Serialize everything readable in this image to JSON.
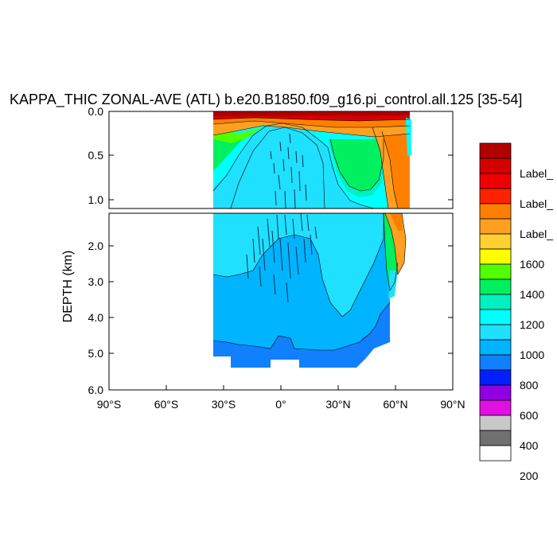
{
  "chart_data": {
    "type": "heatmap",
    "title": "KAPPA_THIC ZONAL-AVE (ATL) b.e20.B1850.f09_g16.pi_control.all.125 [35-54]",
    "ylabel": "DEPTH (km)",
    "xlim": [
      -90,
      90
    ],
    "ylim": [
      0,
      6
    ],
    "x_tick_labels": [
      "90°S",
      "60°S",
      "30°S",
      "0°",
      "30°N",
      "60°N",
      "90°N"
    ],
    "y_tick_labels_upper": [
      "0.0",
      "0.5",
      "1.0"
    ],
    "y_tick_labels_lower": [
      "2.0",
      "3.0",
      "4.0",
      "5.0",
      "6.0"
    ],
    "panels": [
      {
        "name": "upper",
        "depth_range": [
          0,
          1.1
        ]
      },
      {
        "name": "lower",
        "depth_range": [
          1.1,
          6.0
        ]
      }
    ],
    "colorbar": {
      "labels_top_down": [
        "Label_",
        "Label_",
        "Label_",
        "1600",
        "1400",
        "1200",
        "1000",
        "800",
        "600",
        "400",
        "200"
      ],
      "colors_top_down": [
        "#b00000",
        "#d40000",
        "#ee0000",
        "#ff2200",
        "#ff8000",
        "#ffa020",
        "#ffd030",
        "#ffff00",
        "#50ff00",
        "#00f060",
        "#00f0c0",
        "#00ffff",
        "#20e0ff",
        "#00b4ff",
        "#1080ff",
        "#0020ff",
        "#9000e0",
        "#e010e0",
        "#c8c8c8",
        "#707070",
        "#ffffff"
      ]
    },
    "data_extent": {
      "lon_min": -35,
      "lon_max": 68,
      "max_depth": 5.35
    },
    "colors": {
      "surface": "#b00000",
      "warm": "#ff8000",
      "green": "#00f060",
      "cyan": "#00ffff",
      "light_blue": "#20e0ff",
      "mid_blue": "#00b4ff",
      "deep_blue": "#1080ff"
    }
  }
}
